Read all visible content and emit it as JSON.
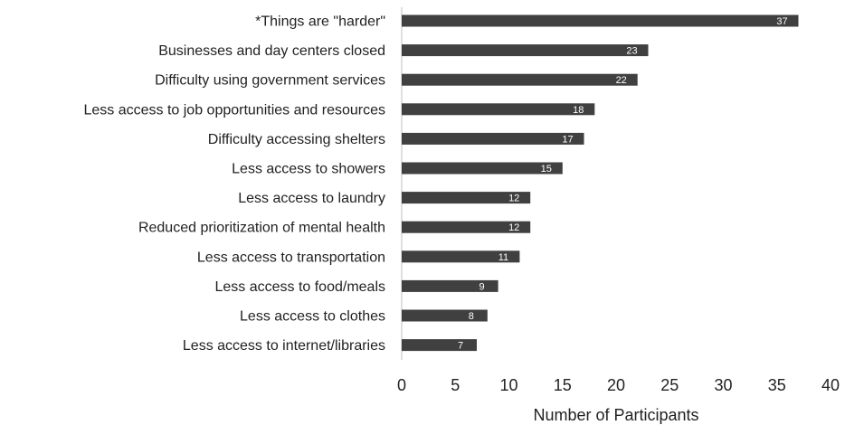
{
  "chart_data": {
    "type": "bar",
    "orientation": "horizontal",
    "categories": [
      "*Things are \"harder\"",
      "Businesses and day centers closed",
      "Difficulty using government services",
      "Less access to job opportunities and resources",
      "Difficulty accessing shelters",
      "Less access to showers",
      "Less access to laundry",
      "Reduced prioritization of mental health",
      "Less access to transportation",
      "Less access to food/meals",
      "Less access to clothes",
      "Less access to internet/libraries"
    ],
    "values": [
      37,
      23,
      22,
      18,
      17,
      15,
      12,
      12,
      11,
      9,
      8,
      7
    ],
    "data_labels": [
      "37",
      "23",
      "22",
      "18",
      "17",
      "15",
      "12",
      "12",
      "11",
      "9",
      "8",
      "7"
    ],
    "xlabel": "Number of Participants",
    "xlim": [
      0,
      40
    ],
    "xticks": [
      "0",
      "5",
      "10",
      "15",
      "20",
      "25",
      "30",
      "35",
      "40"
    ],
    "grid": false,
    "legend": "none",
    "bar_color": "#404040",
    "data_label_color": "#ffffff",
    "text_color": "#222222",
    "axis_color": "#bfbfbf"
  }
}
